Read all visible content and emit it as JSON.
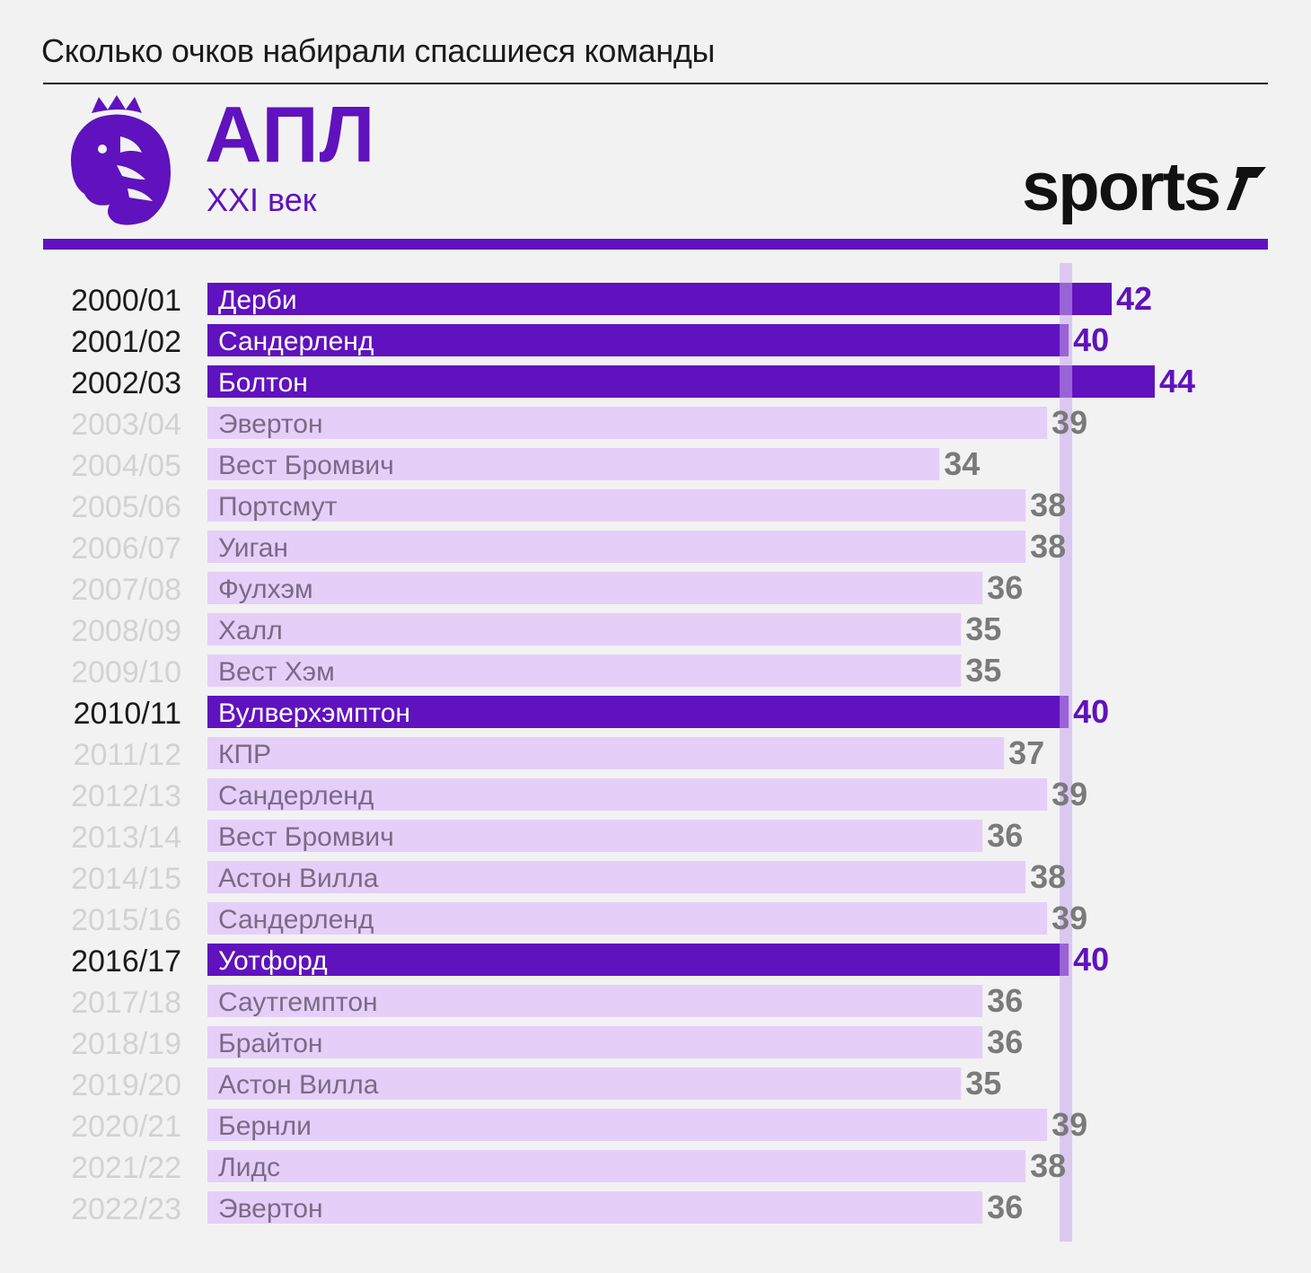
{
  "header": {
    "title": "Сколько очков набирали спасшиеся команды",
    "league": "АПЛ",
    "era": "XXI век",
    "brand": "sports"
  },
  "colors": {
    "primary": "#5f12bd",
    "light": "#e5cff9",
    "threshold": "#c8a6ef",
    "season_active": "#1a1a1a",
    "season_muted": "#d2d2d2",
    "value_muted": "#7a7a7a"
  },
  "chart_data": {
    "type": "bar",
    "orientation": "horizontal",
    "title": "Сколько очков набирали спасшиеся команды",
    "threshold": 40,
    "xlim": [
      0,
      44
    ],
    "categories": [
      "2000/01",
      "2001/02",
      "2002/03",
      "2003/04",
      "2004/05",
      "2005/06",
      "2006/07",
      "2007/08",
      "2008/09",
      "2009/10",
      "2010/11",
      "2011/12",
      "2012/13",
      "2013/14",
      "2014/15",
      "2015/16",
      "2016/17",
      "2017/18",
      "2018/19",
      "2019/20",
      "2020/21",
      "2021/22",
      "2022/23"
    ],
    "teams": [
      "Дерби",
      "Сандерленд",
      "Болтон",
      "Эвертон",
      "Вест Бромвич",
      "Портсмут",
      "Уиган",
      "Фулхэм",
      "Халл",
      "Вест Хэм",
      "Вулверхэмптон",
      "КПР",
      "Сандерленд",
      "Вест Бромвич",
      "Астон Вилла",
      "Сандерленд",
      "Уотфорд",
      "Саутгемптон",
      "Брайтон",
      "Астон Вилла",
      "Бернли",
      "Лидс",
      "Эвертон"
    ],
    "values": [
      42,
      40,
      44,
      39,
      34,
      38,
      38,
      36,
      35,
      35,
      40,
      37,
      39,
      36,
      38,
      39,
      40,
      36,
      36,
      35,
      39,
      38,
      36
    ],
    "highlighted": [
      true,
      true,
      true,
      false,
      false,
      false,
      false,
      false,
      false,
      false,
      true,
      false,
      false,
      false,
      false,
      false,
      true,
      false,
      false,
      false,
      false,
      false,
      false
    ]
  }
}
